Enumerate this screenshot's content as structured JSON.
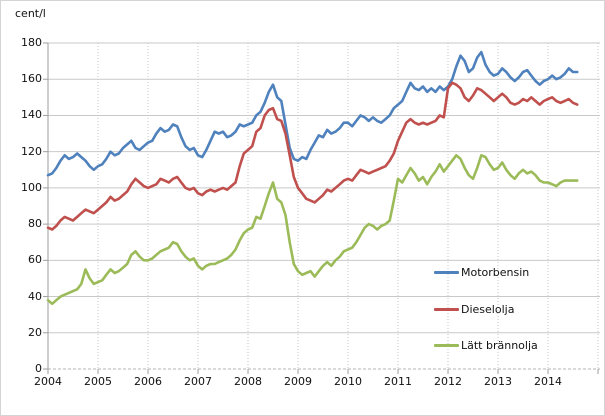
{
  "figure": {
    "unit_label": "cent/l"
  },
  "chart_data": {
    "type": "line",
    "title": "",
    "ylabel": "cent/l",
    "xlabel": "",
    "grid": "on",
    "legend_position": "inside-right",
    "x_axis": {
      "start": "2004-01",
      "frequency": "monthly",
      "tick_labels": [
        "2004",
        "2005",
        "2006",
        "2007",
        "2008",
        "2009",
        "2010",
        "2011",
        "2012",
        "2013",
        "2014"
      ]
    },
    "y_axis": {
      "min": 0,
      "max": 180,
      "tick_step": 20,
      "tick_labels": [
        "0",
        "20",
        "40",
        "60",
        "80",
        "100",
        "120",
        "140",
        "160",
        "180"
      ],
      "unit": "cent/l"
    },
    "series": [
      {
        "name": "Motorbensin",
        "color": "#4F81BD",
        "values": [
          107,
          108,
          111,
          115,
          118,
          116,
          117,
          119,
          117,
          115,
          112,
          110,
          112,
          113,
          116,
          120,
          118,
          119,
          122,
          124,
          126,
          122,
          121,
          123,
          125,
          126,
          130,
          133,
          131,
          132,
          135,
          134,
          128,
          123,
          121,
          122,
          118,
          117,
          121,
          126,
          131,
          130,
          131,
          128,
          129,
          131,
          135,
          134,
          135,
          136,
          140,
          142,
          147,
          153,
          157,
          150,
          148,
          135,
          122,
          116,
          115,
          117,
          116,
          121,
          125,
          129,
          128,
          132,
          130,
          131,
          133,
          136,
          136,
          134,
          137,
          140,
          139,
          137,
          139,
          137,
          136,
          138,
          140,
          144,
          146,
          148,
          153,
          158,
          155,
          154,
          156,
          153,
          155,
          153,
          156,
          154,
          156,
          160,
          167,
          173,
          170,
          164,
          166,
          172,
          175,
          168,
          164,
          162,
          163,
          166,
          164,
          161,
          159,
          161,
          164,
          165,
          162,
          159,
          157,
          159,
          160,
          162,
          160,
          161,
          163,
          166,
          164,
          164
        ]
      },
      {
        "name": "Dieselolja",
        "color": "#C0504D",
        "values": [
          78,
          77,
          79,
          82,
          84,
          83,
          82,
          84,
          86,
          88,
          87,
          86,
          88,
          90,
          92,
          95,
          93,
          94,
          96,
          98,
          102,
          105,
          103,
          101,
          100,
          101,
          102,
          105,
          104,
          103,
          105,
          106,
          103,
          100,
          99,
          100,
          97,
          96,
          98,
          99,
          98,
          99,
          100,
          99,
          101,
          103,
          112,
          119,
          121,
          123,
          131,
          133,
          140,
          143,
          144,
          138,
          137,
          130,
          118,
          106,
          100,
          97,
          94,
          93,
          92,
          94,
          96,
          99,
          98,
          100,
          102,
          104,
          105,
          104,
          107,
          110,
          109,
          108,
          109,
          110,
          111,
          112,
          115,
          119,
          126,
          131,
          136,
          138,
          136,
          135,
          136,
          135,
          136,
          137,
          140,
          139,
          155,
          158,
          157,
          155,
          150,
          148,
          151,
          155,
          154,
          152,
          150,
          148,
          150,
          152,
          150,
          147,
          146,
          147,
          149,
          148,
          150,
          148,
          146,
          148,
          149,
          150,
          148,
          147,
          148,
          149,
          147,
          146
        ]
      },
      {
        "name": "Lätt brännolja",
        "color": "#9BBB59",
        "values": [
          38,
          36,
          38,
          40,
          41,
          42,
          43,
          44,
          47,
          55,
          50,
          47,
          48,
          49,
          52,
          55,
          53,
          54,
          56,
          58,
          63,
          65,
          62,
          60,
          60,
          61,
          63,
          65,
          66,
          67,
          70,
          69,
          65,
          62,
          60,
          61,
          57,
          55,
          57,
          58,
          58,
          59,
          60,
          61,
          63,
          66,
          71,
          75,
          77,
          78,
          84,
          83,
          90,
          97,
          103,
          94,
          92,
          85,
          70,
          58,
          54,
          52,
          53,
          54,
          51,
          54,
          57,
          59,
          57,
          60,
          62,
          65,
          66,
          67,
          70,
          74,
          78,
          80,
          79,
          77,
          79,
          80,
          82,
          93,
          105,
          103,
          107,
          111,
          108,
          104,
          106,
          102,
          106,
          109,
          113,
          109,
          112,
          115,
          118,
          116,
          111,
          107,
          105,
          111,
          118,
          117,
          113,
          110,
          111,
          114,
          110,
          107,
          105,
          108,
          110,
          108,
          109,
          107,
          104,
          103,
          103,
          102,
          101,
          103,
          104,
          104,
          104,
          104
        ]
      }
    ]
  }
}
